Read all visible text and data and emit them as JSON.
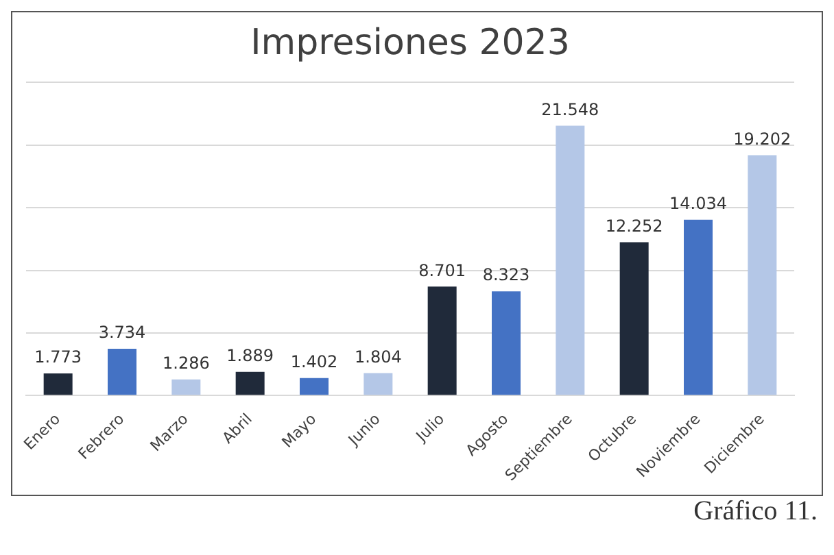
{
  "chart_data": {
    "type": "bar",
    "title": "Impresiones 2023",
    "categories": [
      "Enero",
      "Febrero",
      "Marzo",
      "Abril",
      "Mayo",
      "Junio",
      "Julio",
      "Agosto",
      "Septiembre",
      "Octubre",
      "Noviembre",
      "Diciembre"
    ],
    "values": [
      1773,
      3734,
      1286,
      1889,
      1402,
      1804,
      8701,
      8323,
      21548,
      12252,
      14034,
      19202
    ],
    "value_labels": [
      "1.773",
      "3.734",
      "1.286",
      "1.889",
      "1.402",
      "1.804",
      "8.701",
      "8.323",
      "21.548",
      "12.252",
      "14.034",
      "19.202"
    ],
    "colors": [
      "#202a3a",
      "#4472c4",
      "#b4c7e7",
      "#202a3a",
      "#4472c4",
      "#b4c7e7",
      "#202a3a",
      "#4472c4",
      "#b4c7e7",
      "#202a3a",
      "#4472c4",
      "#b4c7e7"
    ],
    "ylim": [
      0,
      25000
    ],
    "yticks": [
      {
        "value": 0,
        "label": null
      },
      {
        "value": 5000,
        "label": null
      },
      {
        "value": 10000,
        "label": null
      },
      {
        "value": 15000,
        "label": null
      },
      {
        "value": 20000,
        "label": null
      },
      {
        "value": 25000,
        "label": null
      }
    ],
    "grid": "y",
    "tick_labels": "x",
    "legend": false,
    "annotations": [
      "Gráfico 11."
    ]
  }
}
